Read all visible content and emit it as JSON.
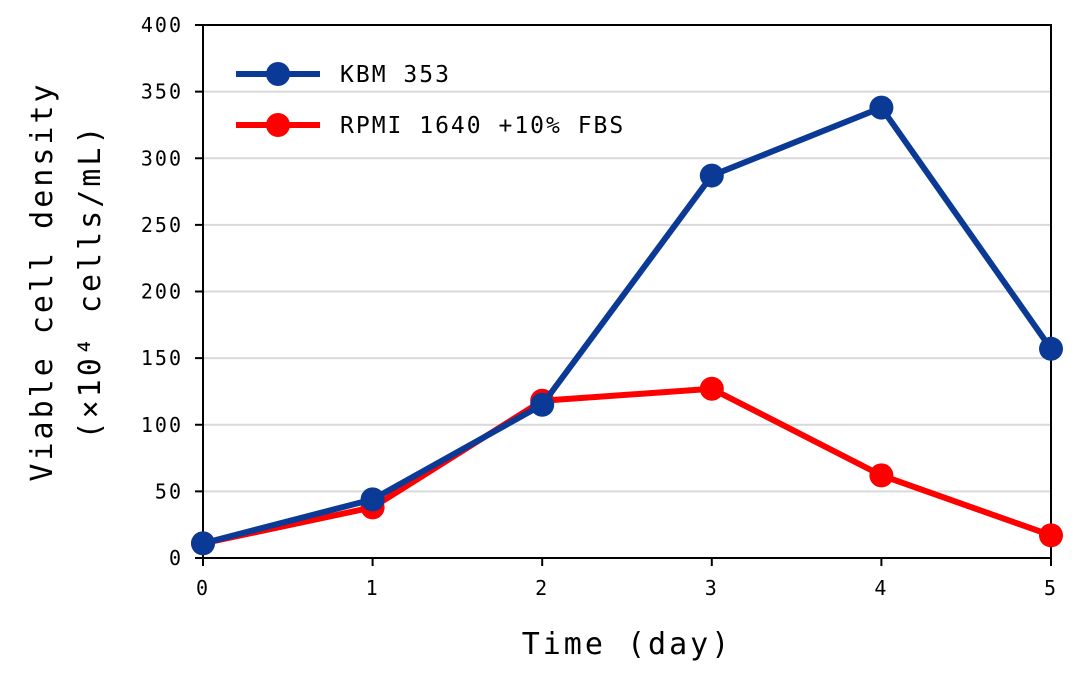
{
  "chart_data": {
    "type": "line",
    "title": "",
    "xlabel": "Time (day)",
    "ylabel_line1": "Viable cell density",
    "ylabel_line2": "(×10⁴ cells/mL)",
    "x": [
      0,
      1,
      2,
      3,
      4,
      5
    ],
    "xlim": [
      0,
      5
    ],
    "ylim": [
      0,
      400
    ],
    "yticks": [
      0,
      50,
      100,
      150,
      200,
      250,
      300,
      350,
      400
    ],
    "grid": "horizontal",
    "legend_position": "top-left",
    "series": [
      {
        "name": "KBM 353",
        "color": "#0b3a96",
        "values": [
          11,
          44,
          115,
          287,
          338,
          157
        ]
      },
      {
        "name": "RPMI 1640 +10% FBS",
        "color": "#ff0000",
        "values": [
          11,
          38,
          118,
          127,
          62,
          17
        ]
      }
    ]
  }
}
